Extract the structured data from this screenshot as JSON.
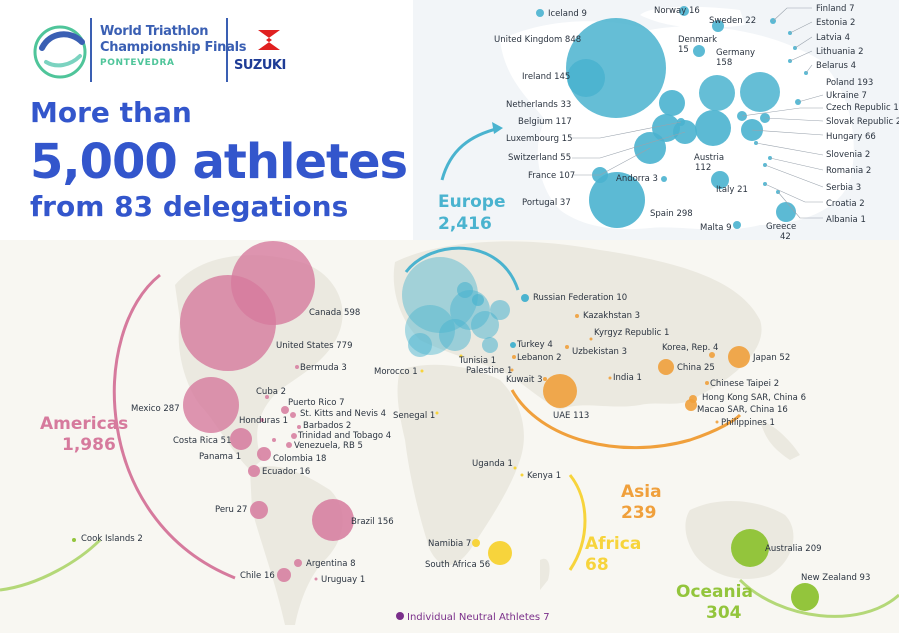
{
  "logo": {
    "event_line1": "World Triathlon",
    "event_line2": "Championship Finals",
    "event_line3": "PONTEVEDRA",
    "sponsor": "SUZUKI"
  },
  "headline": {
    "line1": "More than",
    "line2": "5,000 athletes",
    "line3": "from 83 delegations"
  },
  "colors": {
    "europe": "#4ab3cf",
    "americas": "#d67a9d",
    "asia": "#f0a03c",
    "africa": "#f7d43c",
    "oceania": "#93c53c",
    "neutral": "#7a2f8a",
    "headline": "#3356cc"
  },
  "regions": {
    "europe": {
      "name": "Europe",
      "total": "2,416"
    },
    "americas": {
      "name": "Americas",
      "total": "1,986"
    },
    "asia": {
      "name": "Asia",
      "total": "239"
    },
    "africa": {
      "name": "Africa",
      "total": "68"
    },
    "oceania": {
      "name": "Oceania",
      "total": "304"
    }
  },
  "neutral": "Individual Neutral Athletes 7",
  "europe_countries": [
    "Iceland 9",
    "Norway 16",
    "Sweden 22",
    "Finland 7",
    "Estonia 2",
    "Latvia 4",
    "Lithuania 2",
    "Belarus 4",
    "United Kingdom 848",
    "Denmark",
    "15",
    "Germany",
    "158",
    "Ireland 145",
    "Poland 193",
    "Ukraine 7",
    "Czech Republic 17",
    "Netherlands 33",
    "Slovak Republic 28",
    "Belgium 117",
    "Hungary 66",
    "Luxembourg 15",
    "Austria",
    "112",
    "Slovenia 2",
    "Switzerland 55",
    "Romania 2",
    "France 107",
    "Andorra 3",
    "Italy 21",
    "Serbia 3",
    "Portugal 37",
    "Spain 298",
    "Croatia 2",
    "Albania 1",
    "Malta 9",
    "Greece",
    "42"
  ],
  "world_countries": [
    "Canada 598",
    "United States 779",
    "Bermuda 3",
    "Cuba 2",
    "Mexico 287",
    "Puerto Rico 7",
    "St. Kitts and Nevis 4",
    "Honduras 1",
    "Barbados 2",
    "Costa Rica 51",
    "Trinidad and Tobago 4",
    "Venezuela, RB 5",
    "Panama 1",
    "Colombia 18",
    "Ecuador 16",
    "Peru 27",
    "Brazil 156",
    "Argentina 8",
    "Chile 16",
    "Uruguay 1",
    "Cook Islands 2",
    "Russian Federation 10",
    "Kazakhstan 3",
    "Kyrgyz Republic 1",
    "Turkey 4",
    "Lebanon 2",
    "Uzbekistan 3",
    "Tunisia 1",
    "Palestine 1",
    "Morocco 1",
    "Kuwait 3",
    "Korea, Rep. 4",
    "Japan 52",
    "China 25",
    "India 1",
    "UAE 113",
    "Chinese Taipei 2",
    "Hong Kong SAR, China 6",
    "Macao SAR, China 16",
    "Philippines 1",
    "Senegal 1",
    "Uganda 1",
    "Kenya 1",
    "Namibia 7",
    "South Africa 56",
    "Australia 209",
    "New Zealand 93"
  ]
}
